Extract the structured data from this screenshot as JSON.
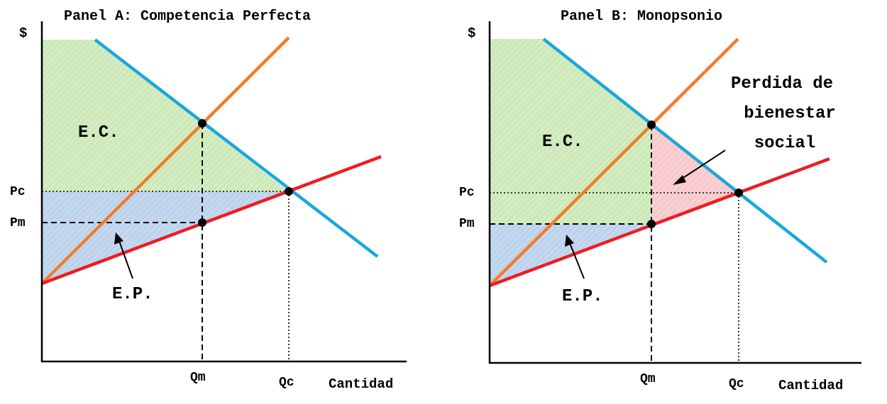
{
  "panels": [
    {
      "title": "Panel A: Competencia Perfecta",
      "y_axis_label": "$",
      "x_axis_label": "Cantidad",
      "price_labels": {
        "pc": "Pc",
        "pm": "Pm"
      },
      "quantity_labels": {
        "qm": "Qm",
        "qc": "Qc"
      },
      "consumer_surplus_label": "E.C.",
      "producer_surplus_label": "E.P."
    },
    {
      "title": "Panel B: Monopsonio",
      "y_axis_label": "$",
      "x_axis_label": "Cantidad",
      "price_labels": {
        "pc": "Pc",
        "pm": "Pm"
      },
      "quantity_labels": {
        "qm": "Qm",
        "qc": "Qc"
      },
      "consumer_surplus_label": "E.C.",
      "producer_surplus_label": "E.P.",
      "deadweight_loss_label": [
        "Perdida de",
        "bienestar",
        "social"
      ]
    }
  ],
  "colors": {
    "demand_curve": "#1aa7dd",
    "supply_curve": "#ee1c24",
    "marginal_expenditure_curve": "#ef7d2d",
    "consumer_surplus_fill": "#d3ecc0",
    "producer_surplus_fill": "#c4d8ef",
    "deadweight_loss_fill": "#f9d0d2",
    "points": "#000000"
  }
}
